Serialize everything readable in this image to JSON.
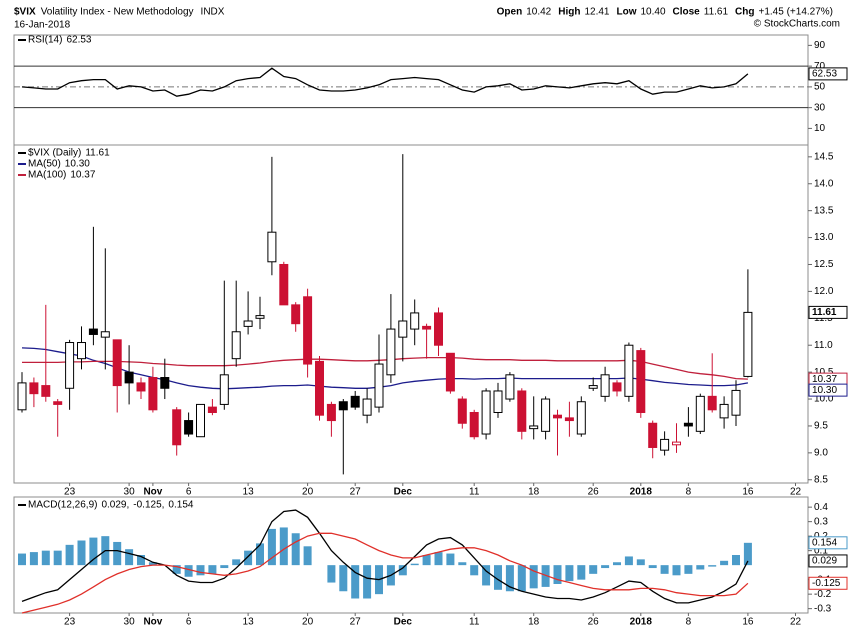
{
  "header": {
    "symbol": "$VIX",
    "name": "Volatility Index - New Methodology",
    "exchange": "INDX",
    "date": "16-Jan-2018",
    "stats": [
      {
        "label": "Open",
        "value": "10.42"
      },
      {
        "label": "High",
        "value": "12.41"
      },
      {
        "label": "Low",
        "value": "10.40"
      },
      {
        "label": "Close",
        "value": "11.61"
      },
      {
        "label": "Chg",
        "value": "+1.45 (+14.27%)"
      }
    ],
    "credit": "© StockCharts.com"
  },
  "chart_data": [
    {
      "type": "line",
      "name": "RSI(14)",
      "series": [
        {
          "color": "#000000",
          "values": [
            50,
            49,
            48,
            48,
            54,
            56,
            57,
            57,
            48,
            51,
            50,
            46,
            47,
            41,
            43,
            47,
            46,
            50,
            56,
            58,
            59,
            68,
            60,
            58,
            52,
            47,
            46,
            46,
            47,
            49,
            52,
            57,
            58,
            59,
            58,
            57,
            52,
            47,
            45,
            50,
            51,
            53,
            47,
            48,
            51,
            50,
            49,
            51,
            53,
            54,
            53,
            56,
            48,
            43,
            45,
            45,
            48,
            51,
            49,
            50,
            53,
            62.53,
            null,
            null,
            null,
            null
          ]
        }
      ],
      "ylim": [
        -6,
        100
      ],
      "yticks": [
        10,
        30,
        50,
        70,
        90
      ],
      "hlines": [
        70,
        50,
        30
      ],
      "hline_dash": [
        false,
        true,
        false
      ]
    },
    {
      "type": "candlestick",
      "name": "$VIX (Daily)",
      "categories": [
        null,
        null,
        null,
        null,
        "23",
        null,
        null,
        null,
        null,
        "30",
        null,
        "Nov",
        null,
        null,
        "6",
        null,
        null,
        null,
        null,
        "13",
        null,
        null,
        null,
        null,
        "20",
        null,
        null,
        null,
        "27",
        null,
        null,
        null,
        "Dec",
        null,
        null,
        null,
        null,
        null,
        "11",
        null,
        null,
        null,
        null,
        "18",
        null,
        null,
        null,
        null,
        "26",
        null,
        null,
        null,
        "2018",
        null,
        null,
        null,
        "8",
        null,
        null,
        null,
        null,
        "16",
        null,
        null,
        null,
        "22"
      ],
      "open": [
        9.8,
        10.3,
        10.25,
        9.95,
        10.2,
        10.75,
        11.3,
        11.15,
        11.1,
        10.5,
        10.3,
        10.4,
        10.4,
        9.8,
        9.6,
        9.3,
        9.85,
        9.9,
        10.75,
        11.35,
        11.5,
        12.55,
        12.5,
        11.75,
        11.9,
        10.7,
        9.9,
        9.95,
        10.05,
        9.7,
        9.85,
        10.45,
        11.15,
        11.3,
        11.35,
        11.6,
        10.85,
        10.0,
        9.75,
        9.35,
        9.75,
        10.0,
        10.15,
        9.45,
        9.4,
        9.7,
        9.65,
        9.35,
        10.2,
        10.05,
        10.3,
        10.05,
        10.9,
        9.55,
        9.05,
        9.15,
        9.55,
        9.4,
        10.05,
        9.65,
        9.7,
        10.42,
        null,
        null,
        null,
        null
      ],
      "high": [
        10.5,
        10.4,
        11.75,
        10.0,
        11.1,
        11.35,
        13.2,
        12.8,
        11.1,
        11.0,
        10.4,
        10.6,
        10.75,
        9.85,
        9.75,
        9.9,
        10.0,
        12.2,
        12.2,
        12.0,
        11.9,
        14.5,
        12.55,
        11.8,
        12.05,
        10.8,
        9.95,
        10.0,
        10.15,
        10.2,
        11.2,
        11.95,
        14.55,
        11.85,
        11.4,
        11.7,
        10.85,
        10.05,
        9.8,
        10.2,
        10.3,
        10.5,
        10.2,
        10.05,
        10.05,
        9.8,
        9.95,
        10.05,
        10.4,
        10.6,
        10.35,
        11.05,
        10.95,
        9.6,
        9.4,
        9.55,
        9.85,
        10.1,
        10.85,
        10.05,
        10.35,
        12.41,
        null,
        null,
        null,
        null
      ],
      "low": [
        9.75,
        9.85,
        9.95,
        9.3,
        9.8,
        10.55,
        11.0,
        10.55,
        9.75,
        9.9,
        10.0,
        9.75,
        10.0,
        8.95,
        9.3,
        9.3,
        9.7,
        9.8,
        10.6,
        11.2,
        11.3,
        12.3,
        11.75,
        11.25,
        10.4,
        9.6,
        9.3,
        8.6,
        9.8,
        9.55,
        9.75,
        10.3,
        10.7,
        11.0,
        10.75,
        10.8,
        10.1,
        9.45,
        9.25,
        9.25,
        9.65,
        9.95,
        9.25,
        9.25,
        9.25,
        8.95,
        9.3,
        9.3,
        10.15,
        9.95,
        10.05,
        9.95,
        9.65,
        8.9,
        8.95,
        9.0,
        9.3,
        9.35,
        9.75,
        9.45,
        9.5,
        10.4,
        null,
        null,
        null,
        null
      ],
      "close": [
        10.3,
        10.1,
        10.05,
        9.9,
        11.05,
        11.05,
        11.2,
        11.25,
        10.25,
        10.3,
        10.15,
        9.8,
        10.2,
        9.15,
        9.35,
        9.9,
        9.75,
        10.45,
        11.25,
        11.45,
        11.55,
        13.1,
        11.75,
        11.4,
        10.65,
        9.7,
        9.6,
        9.8,
        9.85,
        10.0,
        10.65,
        11.3,
        11.45,
        11.6,
        11.3,
        11.0,
        10.15,
        9.55,
        9.3,
        10.15,
        10.15,
        10.45,
        9.4,
        9.5,
        10.0,
        9.65,
        9.6,
        9.95,
        10.25,
        10.45,
        10.15,
        11.0,
        9.75,
        9.1,
        9.25,
        9.2,
        9.5,
        10.05,
        9.8,
        9.9,
        10.16,
        11.61,
        null,
        null,
        null,
        null
      ],
      "up_color": "#000000",
      "down_color": "#cc1133",
      "series": [
        {
          "name": "MA(50)",
          "color": "#1c1c8c",
          "values": [
            10.95,
            10.94,
            10.92,
            10.88,
            10.84,
            10.8,
            10.72,
            10.66,
            10.58,
            10.5,
            10.45,
            10.4,
            10.36,
            10.3,
            10.25,
            10.22,
            10.2,
            10.19,
            10.2,
            10.21,
            10.22,
            10.24,
            10.25,
            10.25,
            10.26,
            10.24,
            10.22,
            10.21,
            10.2,
            10.2,
            10.22,
            10.25,
            10.3,
            10.33,
            10.35,
            10.37,
            10.38,
            10.38,
            10.37,
            10.38,
            10.38,
            10.39,
            10.38,
            10.38,
            10.38,
            10.38,
            10.38,
            10.38,
            10.38,
            10.38,
            10.38,
            10.39,
            10.37,
            10.34,
            10.31,
            10.29,
            10.27,
            10.26,
            10.25,
            10.25,
            10.26,
            10.3,
            null,
            null,
            null,
            null
          ],
          "value_labels": [
            null,
            null,
            null,
            null,
            null,
            null,
            null,
            null,
            null,
            null,
            null,
            null,
            null,
            null,
            null,
            null,
            null,
            null,
            null,
            null,
            null,
            null,
            null,
            null,
            null,
            null,
            null,
            null,
            null,
            null,
            null,
            null,
            null,
            null,
            null,
            null,
            null,
            null,
            null,
            null,
            null,
            null,
            null,
            null,
            null,
            null,
            null,
            null,
            null,
            null,
            null,
            null,
            null,
            null,
            null,
            null,
            null,
            null,
            null,
            null,
            null,
            "10.30",
            null,
            null,
            null,
            null
          ]
        },
        {
          "name": "MA(100)",
          "color": "#c0203c",
          "values": [
            10.68,
            10.68,
            10.68,
            10.68,
            10.69,
            10.69,
            10.7,
            10.7,
            10.7,
            10.69,
            10.68,
            10.66,
            10.65,
            10.63,
            10.62,
            10.62,
            10.62,
            10.62,
            10.63,
            10.65,
            10.67,
            10.7,
            10.72,
            10.73,
            10.74,
            10.74,
            10.73,
            10.72,
            10.71,
            10.71,
            10.72,
            10.73,
            10.75,
            10.76,
            10.77,
            10.77,
            10.77,
            10.76,
            10.74,
            10.73,
            10.73,
            10.73,
            10.72,
            10.72,
            10.72,
            10.71,
            10.71,
            10.71,
            10.71,
            10.71,
            10.71,
            10.72,
            10.7,
            10.65,
            10.6,
            10.55,
            10.5,
            10.47,
            10.45,
            10.42,
            10.38,
            10.37,
            null,
            null,
            null,
            null
          ]
        }
      ],
      "ylim": [
        8.44,
        14.72
      ],
      "yticks": [
        8.5,
        {
          "value": 9,
          "label": "9.0"
        },
        9.5,
        {
          "value": 10,
          "label": "10.0"
        },
        10.5,
        {
          "value": 11,
          "label": "11.0"
        },
        11.5,
        {
          "value": 12,
          "label": "12.0"
        },
        12.5,
        {
          "value": 13,
          "label": "13.0"
        },
        13.5,
        {
          "value": 14,
          "label": "14.0"
        },
        14.5
      ]
    },
    {
      "type": "macd",
      "name": "MACD(12,26,9)",
      "separator": ",",
      "categories": [
        null,
        null,
        null,
        null,
        "23",
        null,
        null,
        null,
        null,
        "30",
        null,
        "Nov",
        null,
        null,
        "6",
        null,
        null,
        null,
        null,
        "13",
        null,
        null,
        null,
        null,
        "20",
        null,
        null,
        null,
        "27",
        null,
        null,
        null,
        "Dec",
        null,
        null,
        null,
        null,
        null,
        "11",
        null,
        null,
        null,
        null,
        "18",
        null,
        null,
        null,
        null,
        "26",
        null,
        null,
        null,
        "2018",
        null,
        null,
        null,
        "8",
        null,
        null,
        null,
        null,
        "16",
        null,
        null,
        null,
        "22"
      ],
      "series": [
        {
          "type": "line",
          "color": "#000000",
          "values": [
            -0.25,
            -0.22,
            -0.19,
            -0.17,
            -0.1,
            -0.03,
            0.04,
            0.1,
            0.1,
            0.08,
            0.06,
            0.02,
            0.0,
            -0.07,
            -0.11,
            -0.12,
            -0.12,
            -0.09,
            -0.02,
            0.06,
            0.14,
            0.3,
            0.37,
            0.38,
            0.33,
            0.22,
            0.1,
            0.02,
            -0.05,
            -0.09,
            -0.1,
            -0.07,
            -0.02,
            0.06,
            0.14,
            0.18,
            0.19,
            0.14,
            0.05,
            -0.04,
            -0.1,
            -0.15,
            -0.18,
            -0.2,
            -0.22,
            -0.23,
            -0.23,
            -0.24,
            -0.22,
            -0.19,
            -0.15,
            -0.11,
            -0.12,
            -0.18,
            -0.23,
            -0.26,
            -0.26,
            -0.24,
            -0.22,
            -0.18,
            -0.13,
            0.029,
            null,
            null,
            null,
            null
          ]
        },
        {
          "type": "line",
          "color": "#e0302a",
          "values": [
            -0.33,
            -0.31,
            -0.29,
            -0.27,
            -0.24,
            -0.2,
            -0.15,
            -0.1,
            -0.06,
            -0.03,
            -0.01,
            0.0,
            0.0,
            -0.01,
            -0.03,
            -0.05,
            -0.06,
            -0.07,
            -0.06,
            -0.04,
            -0.01,
            0.05,
            0.11,
            0.16,
            0.2,
            0.22,
            0.22,
            0.2,
            0.18,
            0.14,
            0.1,
            0.07,
            0.05,
            0.05,
            0.07,
            0.09,
            0.11,
            0.12,
            0.12,
            0.1,
            0.07,
            0.03,
            0.0,
            -0.04,
            -0.07,
            -0.1,
            -0.12,
            -0.14,
            -0.16,
            -0.17,
            -0.17,
            -0.17,
            -0.16,
            -0.16,
            -0.17,
            -0.19,
            -0.2,
            -0.21,
            -0.21,
            -0.21,
            -0.2,
            -0.125,
            null,
            null,
            null,
            null
          ]
        },
        {
          "type": "bar",
          "color": "#4b9bc9",
          "values": [
            0.08,
            0.09,
            0.1,
            0.1,
            0.14,
            0.17,
            0.19,
            0.2,
            0.16,
            0.11,
            0.07,
            0.02,
            0.0,
            -0.06,
            -0.08,
            -0.07,
            -0.06,
            -0.02,
            0.04,
            0.1,
            0.15,
            0.25,
            0.26,
            0.22,
            0.13,
            0.0,
            -0.12,
            -0.18,
            -0.23,
            -0.23,
            -0.2,
            -0.14,
            -0.07,
            0.01,
            0.07,
            0.09,
            0.08,
            0.02,
            -0.07,
            -0.14,
            -0.17,
            -0.18,
            -0.18,
            -0.16,
            -0.15,
            -0.13,
            -0.11,
            -0.1,
            -0.06,
            -0.02,
            0.02,
            0.06,
            0.04,
            -0.02,
            -0.06,
            -0.07,
            -0.06,
            -0.03,
            -0.01,
            0.03,
            0.07,
            0.154,
            null,
            null,
            null,
            null
          ]
        }
      ],
      "ylim": [
        -0.33,
        0.47
      ],
      "yticks": [
        0.4,
        0.3,
        0.2,
        0.1,
        -0.1,
        -0.2,
        -0.3
      ]
    }
  ]
}
